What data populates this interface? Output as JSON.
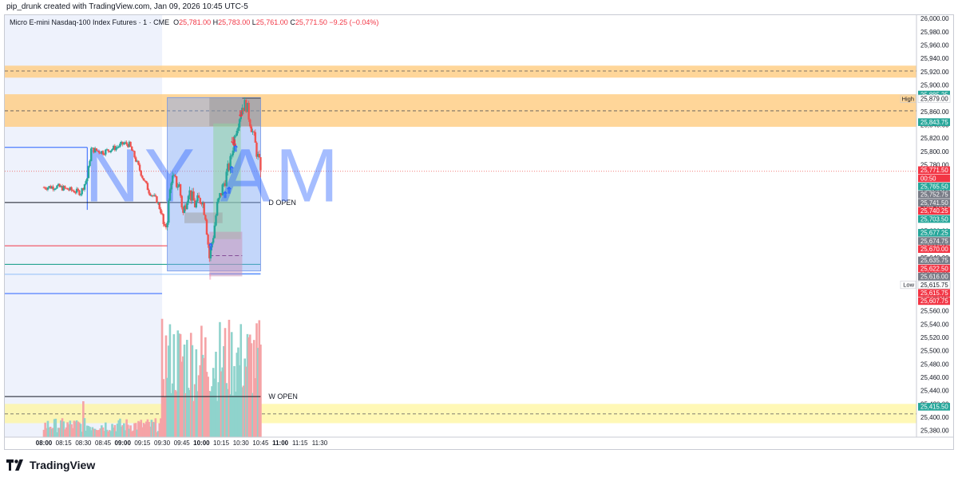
{
  "header": {
    "created_by": "pip_drunk created with TradingView.com, Jan 09, 2026 10:45 UTC-5"
  },
  "legend": {
    "symbol": "Micro E-mini Nasdaq-100 Index Futures · 1 · CME",
    "o_label": "O",
    "o_value": "25,781.00",
    "h_label": "H",
    "h_value": "25,783.00",
    "l_label": "L",
    "l_value": "25,761.00",
    "c_label": "C",
    "c_value": "25,771.50",
    "change": "−9.25 (−0.04%)"
  },
  "brand": {
    "name": "TradingView"
  },
  "colors": {
    "up": "#26a69a",
    "down": "#ef5350",
    "accent": "#2962ff",
    "premarket_bg": "#eef2fc",
    "supply_zone": "#ffcc80",
    "demand_zone": "#fff59d"
  },
  "chart_data": {
    "type": "candlestick",
    "ylim": [
      25370,
      26005
    ],
    "y_ticks": [
      "26,000.00",
      "25,980.00",
      "25,960.00",
      "25,940.00",
      "25,920.00",
      "25,900.00",
      "25,880.00",
      "25,860.00",
      "25,840.00",
      "25,820.00",
      "25,800.00",
      "25,780.00",
      "25,760.00",
      "25,740.00",
      "25,720.00",
      "25,700.00",
      "25,680.00",
      "25,660.00",
      "25,640.00",
      "25,620.00",
      "25,600.00",
      "25,580.00",
      "25,560.00",
      "25,540.00",
      "25,520.00",
      "25,500.00",
      "25,480.00",
      "25,460.00",
      "25,440.00",
      "25,420.00",
      "25,400.00",
      "25,380.00"
    ],
    "x_ticks": [
      {
        "t": "08:00",
        "bold": true
      },
      {
        "t": "08:15"
      },
      {
        "t": "08:30"
      },
      {
        "t": "08:45"
      },
      {
        "t": "09:00",
        "bold": true
      },
      {
        "t": "09:15"
      },
      {
        "t": "09:30"
      },
      {
        "t": "09:45"
      },
      {
        "t": "10:00",
        "bold": true
      },
      {
        "t": "10:15"
      },
      {
        "t": "10:30"
      },
      {
        "t": "10:45"
      },
      {
        "t": "11:00",
        "bold": true
      },
      {
        "t": "11:15"
      },
      {
        "t": "11:30"
      }
    ],
    "session_label": "NY AM",
    "level_labels": [
      {
        "name": "D OPEN",
        "value": 25723
      },
      {
        "name": "W OPEN",
        "value": 25431
      }
    ],
    "price_tags": [
      {
        "text": "25,885.25",
        "bg": "#26a69a"
      },
      {
        "text": "25,879.00",
        "bg": "#ffffff",
        "fg": "#131722",
        "side": "High"
      },
      {
        "text": "25,843.75",
        "bg": "#26a69a"
      },
      {
        "text": "25,771.50",
        "bg": "#f23645"
      },
      {
        "text": "00:50",
        "bg": "#f23645"
      },
      {
        "text": "25,765.50",
        "bg": "#26a69a"
      },
      {
        "text": "25,752.75",
        "bg": "#787b86"
      },
      {
        "text": "25,741.50",
        "bg": "#787b86"
      },
      {
        "text": "25,740.25",
        "bg": "#f23645"
      },
      {
        "text": "25,703.50",
        "bg": "#26a69a"
      },
      {
        "text": "25,677.25",
        "bg": "#26a69a"
      },
      {
        "text": "25,674.75",
        "bg": "#787b86"
      },
      {
        "text": "25,670.00",
        "bg": "#f23645"
      },
      {
        "text": "25,635.75",
        "bg": "#787b86"
      },
      {
        "text": "25,622.50",
        "bg": "#f23645"
      },
      {
        "text": "25,616.00",
        "bg": "#787b86"
      },
      {
        "text": "25,615.75",
        "bg": "#ffffff",
        "fg": "#131722",
        "side": "Low"
      },
      {
        "text": "25,615.75",
        "bg": "#f23645"
      },
      {
        "text": "25,607.75",
        "bg": "#f23645"
      },
      {
        "text": "25,415.50",
        "bg": "#26a69a"
      }
    ],
    "anchors": [
      {
        "t": "08:00",
        "close": 25746
      },
      {
        "t": "08:10",
        "close": 25747
      },
      {
        "t": "08:20",
        "close": 25742
      },
      {
        "t": "08:28",
        "close": 25738
      },
      {
        "t": "08:33",
        "close": 25760
      },
      {
        "t": "08:36",
        "close": 25803
      },
      {
        "t": "08:45",
        "close": 25799
      },
      {
        "t": "08:55",
        "close": 25806
      },
      {
        "t": "09:01",
        "close": 25812
      },
      {
        "t": "09:05",
        "close": 25810
      },
      {
        "t": "09:09",
        "close": 25792
      },
      {
        "t": "09:15",
        "close": 25762
      },
      {
        "t": "09:20",
        "close": 25740
      },
      {
        "t": "09:26",
        "close": 25726
      },
      {
        "t": "09:29",
        "close": 25710
      },
      {
        "t": "09:32",
        "close": 25678
      },
      {
        "t": "09:34",
        "close": 25701
      },
      {
        "t": "09:37",
        "close": 25760
      },
      {
        "t": "09:43",
        "close": 25748
      },
      {
        "t": "09:46",
        "close": 25706
      },
      {
        "t": "09:50",
        "close": 25742
      },
      {
        "t": "09:55",
        "close": 25720
      },
      {
        "t": "10:00",
        "close": 25730
      },
      {
        "t": "10:03",
        "close": 25705
      },
      {
        "t": "10:06",
        "close": 25640
      },
      {
        "t": "10:09",
        "close": 25675
      },
      {
        "t": "10:12",
        "close": 25718
      },
      {
        "t": "10:17",
        "close": 25752
      },
      {
        "t": "10:22",
        "close": 25784
      },
      {
        "t": "10:26",
        "close": 25833
      },
      {
        "t": "10:31",
        "close": 25868
      },
      {
        "t": "10:34",
        "close": 25870
      },
      {
        "t": "10:38",
        "close": 25838
      },
      {
        "t": "10:42",
        "close": 25800
      },
      {
        "t": "10:45",
        "close": 25771.5
      }
    ]
  }
}
